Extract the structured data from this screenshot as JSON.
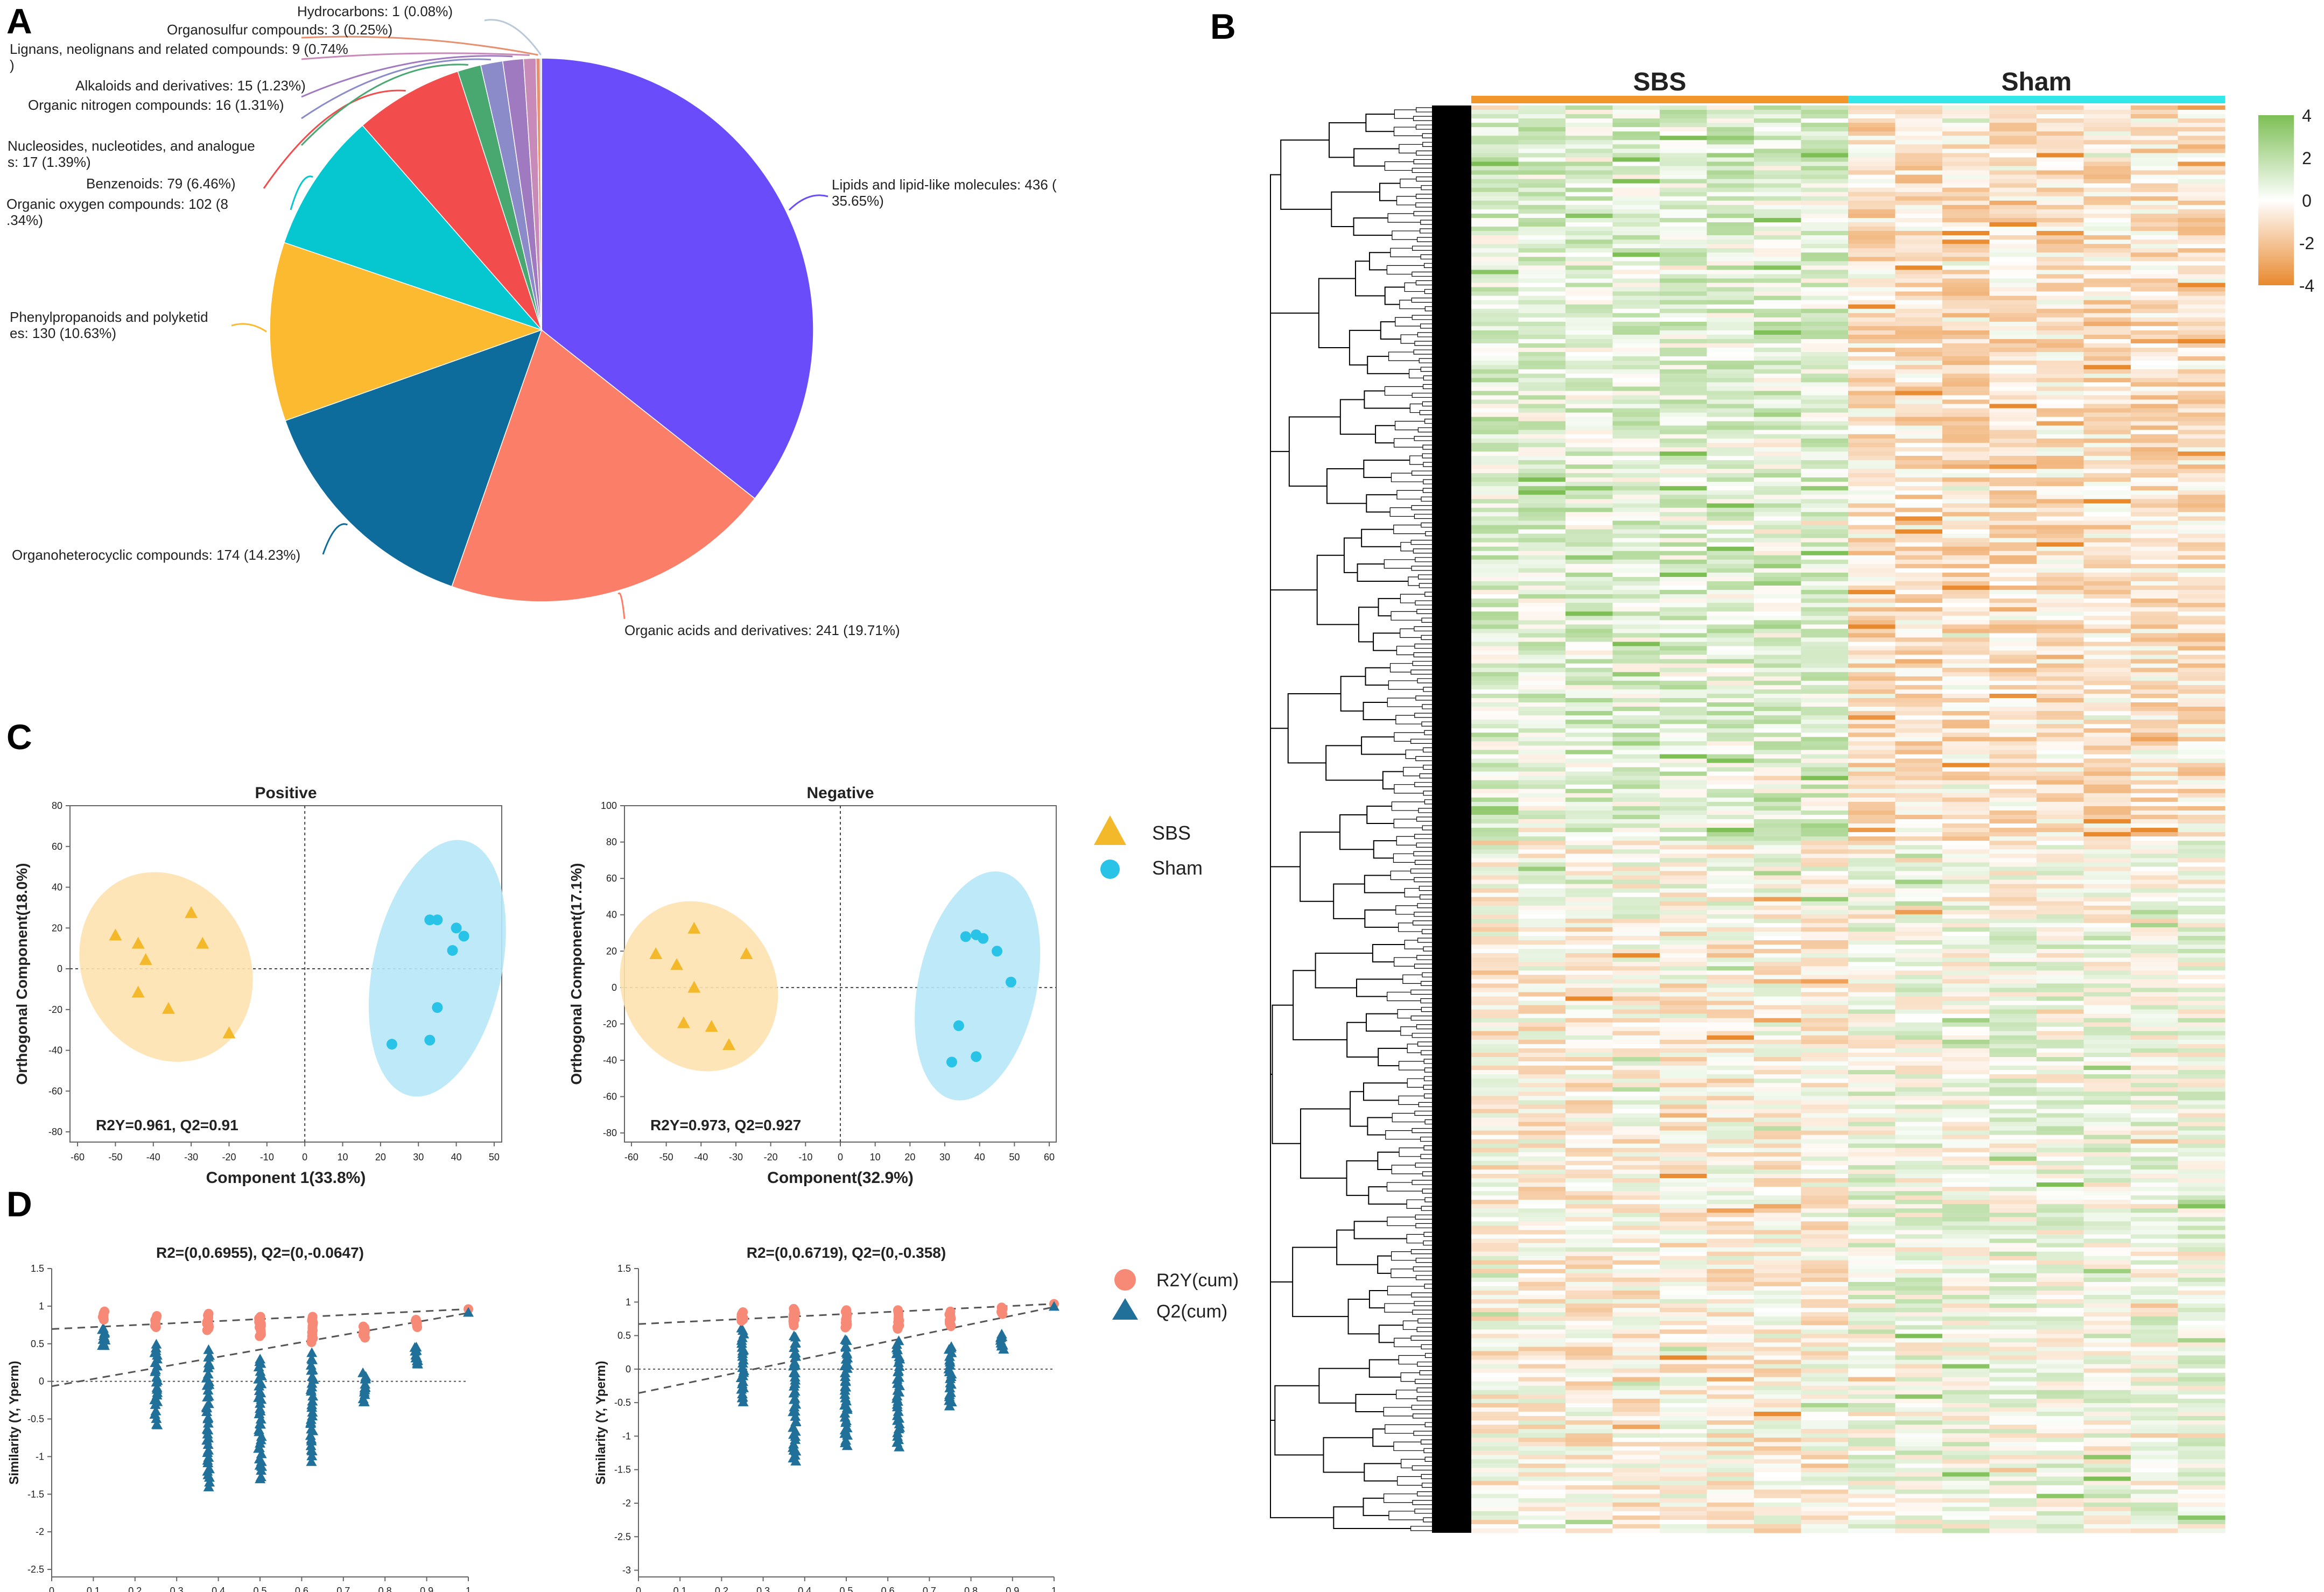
{
  "panel_labels": {
    "a": "A",
    "b": "B",
    "c": "C",
    "d": "D"
  },
  "chart_data": [
    {
      "type": "pie",
      "panel": "A",
      "categories": [
        "Lipids and lipid-like molecules",
        "Organic acids and derivatives",
        "Organoheterocyclic compounds",
        "Phenylpropanoids and polyketides",
        "Organic oxygen compounds",
        "Benzenoids",
        "Nucleosides, nucleotides, and analogues",
        "Organic nitrogen compounds",
        "Alkaloids and derivatives",
        "Lignans, neolignans and related compounds",
        "Organosulfur compounds",
        "Hydrocarbons"
      ],
      "values": [
        436,
        241,
        174,
        130,
        102,
        79,
        17,
        16,
        15,
        9,
        3,
        1
      ],
      "colors": [
        "#6a4cfb",
        "#fb7e68",
        "#0e6c9c",
        "#fbba30",
        "#06c7cf",
        "#f24c4c",
        "#48a870",
        "#8a8bc8",
        "#a07ac0",
        "#c88ab8",
        "#e79070",
        "#b9c9d8"
      ],
      "labels": [
        [
          "Lipids and lipid-like molecules: 436 (",
          "35.65%)"
        ],
        [
          "Organic acids and derivatives: 241 (19.71%)"
        ],
        [
          "Organoheterocyclic compounds: 174 (14.23%)"
        ],
        [
          "Phenylpropanoids and polyketid",
          "es: 130 (10.63%)"
        ],
        [
          "Organic oxygen compounds: 102 (8",
          ".34%)"
        ],
        [
          "Benzenoids: 79 (6.46%)"
        ],
        [
          "Nucleosides, nucleotides, and analogue",
          "s: 17 (1.39%)"
        ],
        [
          "Organic nitrogen compounds: 16 (1.31%)"
        ],
        [
          "Alkaloids and derivatives: 15 (1.23%)"
        ],
        [
          "Lignans, neolignans and related compounds: 9 (0.74%",
          ")"
        ],
        [
          "Organosulfur compounds: 3 (0.25%)"
        ],
        [
          "Hydrocarbons: 1 (0.08%)"
        ]
      ]
    },
    {
      "type": "heatmap",
      "panel": "B",
      "groups": [
        "SBS",
        "Sham"
      ],
      "group_colors": [
        "#f0962a",
        "#33e6ea"
      ],
      "columns_per_group": 8,
      "rows": 1223,
      "colorbar_ticks": [
        4,
        2,
        0,
        -2,
        -4
      ],
      "colorbar_colors": [
        "#7dbf55",
        "#ffffff",
        "#e9892e"
      ],
      "row_dendrogram": true
    },
    {
      "type": "scatter",
      "panel": "C",
      "title": "Positive",
      "xlabel": "Component 1(33.8%)",
      "ylabel": "Orthogonal Component(18.0%)",
      "xlim": [
        -62,
        52
      ],
      "ylim": [
        -85,
        80
      ],
      "xticks": [
        -60,
        -50,
        -40,
        -30,
        -20,
        -10,
        0,
        10,
        20,
        30,
        40,
        50
      ],
      "yticks": [
        80,
        60,
        40,
        20,
        0,
        -20,
        -40,
        -60,
        -80
      ],
      "annotation": "R2Y=0.961, Q2=0.91",
      "series": [
        {
          "name": "SBS",
          "x": [
            -50,
            -44,
            -42,
            -30,
            -27,
            -36,
            -44,
            -20
          ],
          "y": [
            16,
            12,
            4,
            27,
            12,
            -20,
            -12,
            -32
          ]
        },
        {
          "name": "Sham",
          "x": [
            33,
            35,
            40,
            42,
            39,
            35,
            33,
            23
          ],
          "y": [
            24,
            24,
            20,
            16,
            9,
            -19,
            -35,
            -37
          ]
        }
      ]
    },
    {
      "type": "scatter",
      "panel": "C",
      "title": "Negative",
      "xlabel": "Component(32.9%)",
      "ylabel": "Orthogonal Component(17.1%)",
      "xlim": [
        -62,
        62
      ],
      "ylim": [
        -85,
        100
      ],
      "xticks": [
        -60,
        -50,
        -40,
        -30,
        -20,
        -10,
        0,
        10,
        20,
        30,
        40,
        50,
        60
      ],
      "yticks": [
        100,
        80,
        60,
        40,
        20,
        0,
        -20,
        -40,
        -60,
        -80
      ],
      "annotation": "R2Y=0.973, Q2=0.927",
      "series": [
        {
          "name": "SBS",
          "x": [
            -53,
            -42,
            -47,
            -27,
            -42,
            -37,
            -32,
            -45
          ],
          "y": [
            18,
            32,
            12,
            18,
            -0.5,
            -22,
            -32,
            -20
          ]
        },
        {
          "name": "Sham",
          "x": [
            36,
            39,
            41,
            45,
            49,
            34,
            39,
            32
          ],
          "y": [
            28,
            29,
            27,
            20,
            3,
            -21,
            -38,
            -41
          ]
        }
      ]
    },
    {
      "type": "scatter",
      "panel": "D",
      "title": "R2=(0,0.6955), Q2=(0,-0.0647)",
      "ylabel": "Similarity (Y, Yperm)",
      "xlim": [
        0,
        1
      ],
      "ylim": [
        -2.6,
        1.5
      ],
      "xticks": [
        0,
        0.1,
        0.2,
        0.3,
        0.4,
        0.5,
        0.6,
        0.7,
        0.8,
        0.9,
        1
      ],
      "yticks": [
        1.5,
        1,
        0.5,
        0,
        -0.5,
        -1,
        -1.5,
        -2,
        -2.5
      ],
      "r2_intercept": 0.6955,
      "q2_intercept": -0.0647,
      "r2_actual": 0.961,
      "q2_actual": 0.91,
      "perm_x": [
        0.125,
        0.25,
        0.375,
        0.5,
        0.625,
        0.75,
        0.875
      ],
      "r2_range": [
        [
          0.82,
          0.93
        ],
        [
          0.72,
          0.87
        ],
        [
          0.68,
          0.9
        ],
        [
          0.6,
          0.86
        ],
        [
          0.52,
          0.86
        ],
        [
          0.58,
          0.73
        ],
        [
          0.72,
          0.82
        ]
      ],
      "q2_range": [
        [
          0.45,
          0.7
        ],
        [
          -0.6,
          0.5
        ],
        [
          -1.4,
          0.4
        ],
        [
          -1.3,
          0.3
        ],
        [
          -1.05,
          0.35
        ],
        [
          -0.3,
          0.1
        ],
        [
          0.2,
          0.45
        ]
      ],
      "series": [
        {
          "name": "R2Y(cum)"
        },
        {
          "name": "Q2(cum)"
        }
      ]
    },
    {
      "type": "scatter",
      "panel": "D",
      "title": "R2=(0,0.6719), Q2=(0,-0.358)",
      "ylabel": "Similarity (Y, Yperm)",
      "xlim": [
        0,
        1
      ],
      "ylim": [
        -3.1,
        1.5
      ],
      "xticks": [
        0,
        0.1,
        0.2,
        0.3,
        0.4,
        0.5,
        0.6,
        0.7,
        0.8,
        0.9,
        1
      ],
      "yticks": [
        1.5,
        1,
        0.5,
        0,
        -0.5,
        -1,
        -1.5,
        -2,
        -2.5,
        -3
      ],
      "r2_intercept": 0.6719,
      "q2_intercept": -0.358,
      "r2_actual": 0.973,
      "q2_actual": 0.927,
      "perm_x": [
        0.25,
        0.375,
        0.5,
        0.625,
        0.75,
        0.875
      ],
      "r2_range": [
        [
          0.72,
          0.85
        ],
        [
          0.65,
          0.9
        ],
        [
          0.62,
          0.88
        ],
        [
          0.6,
          0.88
        ],
        [
          0.64,
          0.86
        ],
        [
          0.82,
          0.92
        ]
      ],
      "q2_range": [
        [
          -0.5,
          0.6
        ],
        [
          -1.4,
          0.5
        ],
        [
          -1.15,
          0.45
        ],
        [
          -1.15,
          0.4
        ],
        [
          -0.55,
          0.35
        ],
        [
          0.3,
          0.5
        ]
      ],
      "series": [
        {
          "name": "R2Y(cum)"
        },
        {
          "name": "Q2(cum)"
        }
      ]
    }
  ],
  "legend_c": {
    "sbs": "SBS",
    "sham": "Sham"
  },
  "legend_d": {
    "r2": "R2Y(cum)",
    "q2": "Q2(cum)"
  },
  "colors": {
    "sbs": "#f3b92a",
    "sham": "#29c3e7",
    "sbs_ellipse": "#fde2b0",
    "sham_ellipse": "#b6e7f8",
    "r2": "#f68a76",
    "q2": "#21709a"
  }
}
